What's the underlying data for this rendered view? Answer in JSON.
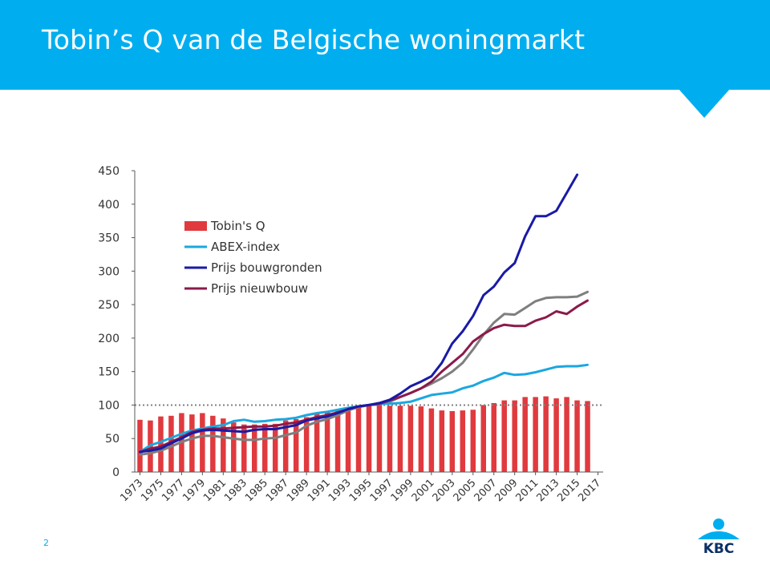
{
  "page": {
    "title": "Tobin’s Q van de Belgische woningmarkt",
    "page_number": "2",
    "logo_text": "KBC"
  },
  "colors": {
    "header": "#00aeef",
    "tobins_q": "#e03a3e",
    "abex": "#1ba7e0",
    "bouwgronden": "#1a1aa6",
    "nieuwbouw": "#8b1a4a",
    "grey_line": "#7f7f7f",
    "reference": "#808080"
  },
  "chart_data": {
    "type": "bar",
    "title": "",
    "xlabel": "",
    "ylabel": "",
    "ylim": [
      0,
      450
    ],
    "yticks": [
      "0",
      "50",
      "100",
      "150",
      "200",
      "250",
      "300",
      "350",
      "400",
      "450"
    ],
    "x": [
      1973,
      1974,
      1975,
      1976,
      1977,
      1978,
      1979,
      1980,
      1981,
      1982,
      1983,
      1984,
      1985,
      1986,
      1987,
      1988,
      1989,
      1990,
      1991,
      1992,
      1993,
      1994,
      1995,
      1996,
      1997,
      1998,
      1999,
      2000,
      2001,
      2002,
      2003,
      2004,
      2005,
      2006,
      2007,
      2008,
      2009,
      2010,
      2011,
      2012,
      2013,
      2014,
      2015,
      2016,
      2017
    ],
    "xtick_labels": [
      "1973",
      "1975",
      "1977",
      "1979",
      "1981",
      "1983",
      "1985",
      "1987",
      "1989",
      "1991",
      "1993",
      "1995",
      "1997",
      "1999",
      "2001",
      "2003",
      "2005",
      "2007",
      "2009",
      "2011",
      "2013",
      "2015",
      "2017"
    ],
    "reference_line": 100,
    "grid": false,
    "legend_position": "top-left",
    "bars": {
      "name": "Tobin's Q",
      "values": [
        78,
        77,
        83,
        84,
        88,
        86,
        88,
        84,
        80,
        74,
        71,
        71,
        72,
        72,
        77,
        79,
        82,
        87,
        91,
        92,
        96,
        98,
        100,
        100,
        99,
        99,
        99,
        98,
        95,
        92,
        91,
        92,
        93,
        100,
        103,
        107,
        107,
        112,
        112,
        113,
        110,
        112,
        107,
        106,
        null
      ]
    },
    "series": [
      {
        "name": "ABEX-index",
        "values": [
          30,
          40,
          45,
          51,
          57,
          62,
          65,
          68,
          70,
          76,
          78,
          75,
          76,
          78,
          79,
          81,
          85,
          88,
          90,
          93,
          96,
          98,
          100,
          102,
          102,
          103,
          105,
          110,
          115,
          117,
          119,
          125,
          129,
          136,
          141,
          148,
          145,
          146,
          149,
          153,
          157,
          158,
          158,
          160,
          null
        ]
      },
      {
        "name": "Prijs bouwgronden",
        "values": [
          30,
          32,
          35,
          43,
          50,
          58,
          62,
          63,
          62,
          61,
          60,
          63,
          64,
          64,
          67,
          70,
          77,
          80,
          83,
          88,
          94,
          98,
          100,
          103,
          108,
          117,
          128,
          135,
          143,
          163,
          192,
          210,
          233,
          264,
          277,
          298,
          312,
          352,
          382,
          382,
          390,
          417,
          444,
          null,
          null
        ]
      },
      {
        "name": "Prijs nieuwbouw",
        "values": [
          30,
          35,
          38,
          45,
          52,
          60,
          63,
          65,
          65,
          66,
          67,
          68,
          68,
          69,
          72,
          74,
          78,
          82,
          85,
          89,
          94,
          98,
          100,
          102,
          107,
          112,
          118,
          125,
          135,
          150,
          163,
          176,
          195,
          206,
          215,
          220,
          218,
          218,
          226,
          231,
          240,
          236,
          247,
          256,
          null
        ]
      },
      {
        "name": "",
        "values": [
          26,
          28,
          32,
          38,
          45,
          50,
          54,
          54,
          52,
          50,
          48,
          48,
          50,
          51,
          55,
          59,
          69,
          75,
          79,
          85,
          92,
          97,
          100,
          101,
          105,
          112,
          118,
          125,
          132,
          140,
          150,
          163,
          183,
          205,
          223,
          236,
          235,
          245,
          255,
          260,
          261,
          261,
          262,
          269,
          null
        ]
      }
    ]
  }
}
